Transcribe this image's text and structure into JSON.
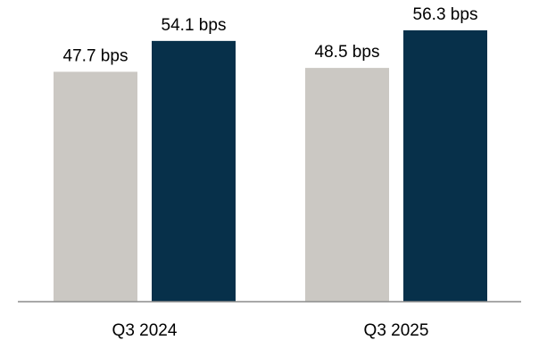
{
  "chart_data": {
    "type": "bar",
    "categories": [
      "Q3 2024",
      "Q3 2025"
    ],
    "series": [
      {
        "values": [
          47.7,
          48.5
        ],
        "labels": [
          "47.7 bps",
          "48.5 bps"
        ],
        "color": "#cbc8c3"
      },
      {
        "values": [
          54.1,
          56.3
        ],
        "labels": [
          "54.1 bps",
          "56.3 bps"
        ],
        "color": "#07304a"
      }
    ],
    "ylim": [
      0,
      60
    ],
    "grid": false,
    "axis_color": "#8c8c8c"
  }
}
